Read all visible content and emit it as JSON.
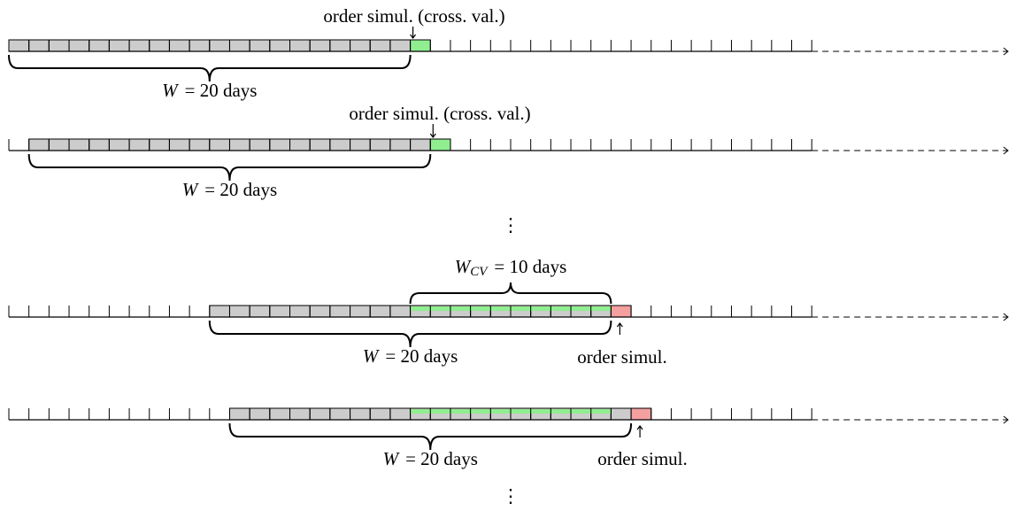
{
  "rows": [
    {
      "top_label": "order simul. (cross. val.)",
      "brace_label": {
        "symbol": "W",
        "text": "= 20 days"
      }
    },
    {
      "top_label": "order simul. (cross. val.)",
      "brace_label": {
        "symbol": "W",
        "text": "= 20 days"
      }
    },
    {
      "cv_label": {
        "symbol": "W",
        "subscript": "CV",
        "text": "= 10 days"
      },
      "brace_label": {
        "symbol": "W",
        "text": "= 20 days"
      },
      "bottom_label": "order simul."
    },
    {
      "brace_label": {
        "symbol": "W",
        "text": "= 20 days"
      },
      "bottom_label": "order simul."
    }
  ],
  "ellipsis": [
    "⋮",
    "⋮"
  ]
}
